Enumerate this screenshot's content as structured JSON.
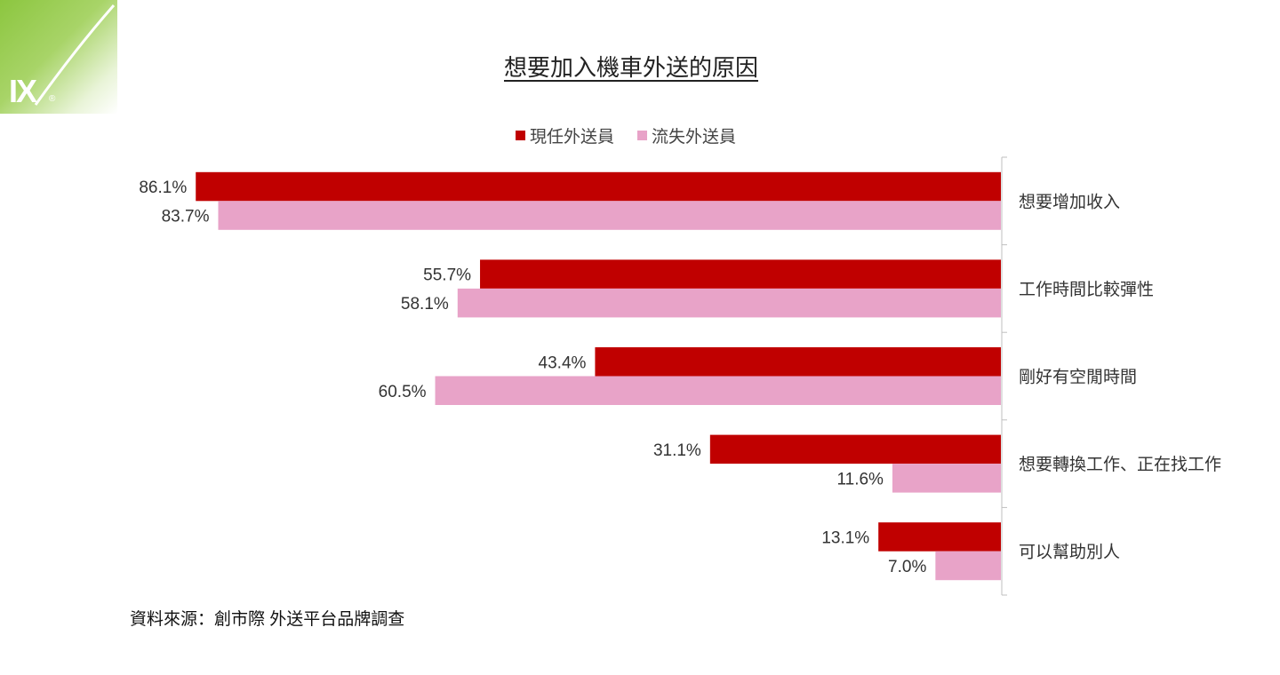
{
  "logo": {
    "text": "IX",
    "reg": "®"
  },
  "source": "資料來源：創市際 外送平台品牌調查",
  "colors": {
    "current": "#c00000",
    "lost": "#e8a3c8",
    "axis": "#bfbfbf",
    "text": "#333333"
  },
  "chart_data": {
    "type": "bar",
    "orientation": "horizontal",
    "title": "想要加入機車外送的原因",
    "categories": [
      "想要增加收入",
      "工作時間比較彈性",
      "剛好有空閒時間",
      "想要轉換工作、正在找工作",
      "可以幫助別人"
    ],
    "series": [
      {
        "name": "現任外送員",
        "values": [
          86.1,
          55.7,
          43.4,
          31.1,
          13.1
        ],
        "labels": [
          "86.1%",
          "55.7%",
          "43.4%",
          "31.1%",
          "13.1%"
        ]
      },
      {
        "name": "流失外送員",
        "values": [
          83.7,
          58.1,
          60.5,
          11.6,
          7.0
        ],
        "labels": [
          "83.7%",
          "58.1%",
          "60.5%",
          "11.6%",
          "7.0%"
        ]
      }
    ],
    "xlim": [
      0,
      100
    ],
    "reversed_value_axis": true,
    "legend": "top",
    "grid": false
  }
}
